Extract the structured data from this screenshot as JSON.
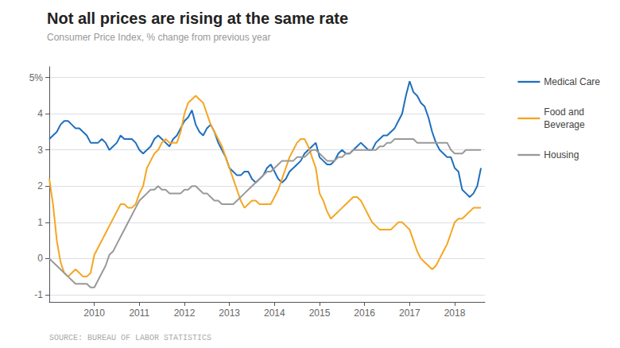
{
  "chart_data": {
    "type": "line",
    "title": "Not all prices are rising at the same rate",
    "subtitle": "Consumer Price Index, % change from previous year",
    "annotations": [
      "SOURCE: BUREAU OF LABOR STATISTICS"
    ],
    "x": [
      2009.0,
      2009.083,
      2009.167,
      2009.25,
      2009.333,
      2009.417,
      2009.5,
      2009.583,
      2009.667,
      2009.75,
      2009.833,
      2009.917,
      2010.0,
      2010.083,
      2010.167,
      2010.25,
      2010.333,
      2010.417,
      2010.5,
      2010.583,
      2010.667,
      2010.75,
      2010.833,
      2010.917,
      2011.0,
      2011.083,
      2011.167,
      2011.25,
      2011.333,
      2011.417,
      2011.5,
      2011.583,
      2011.667,
      2011.75,
      2011.833,
      2011.917,
      2012.0,
      2012.083,
      2012.167,
      2012.25,
      2012.333,
      2012.417,
      2012.5,
      2012.583,
      2012.667,
      2012.75,
      2012.833,
      2012.917,
      2013.0,
      2013.083,
      2013.167,
      2013.25,
      2013.333,
      2013.417,
      2013.5,
      2013.583,
      2013.667,
      2013.75,
      2013.833,
      2013.917,
      2014.0,
      2014.083,
      2014.167,
      2014.25,
      2014.333,
      2014.417,
      2014.5,
      2014.583,
      2014.667,
      2014.75,
      2014.833,
      2014.917,
      2015.0,
      2015.083,
      2015.167,
      2015.25,
      2015.333,
      2015.417,
      2015.5,
      2015.583,
      2015.667,
      2015.75,
      2015.833,
      2015.917,
      2016.0,
      2016.083,
      2016.167,
      2016.25,
      2016.333,
      2016.417,
      2016.5,
      2016.583,
      2016.667,
      2016.75,
      2016.833,
      2016.917,
      2017.0,
      2017.083,
      2017.167,
      2017.25,
      2017.333,
      2017.417,
      2017.5,
      2017.583,
      2017.667,
      2017.75,
      2017.833,
      2017.917,
      2018.0,
      2018.083,
      2018.167,
      2018.25,
      2018.333,
      2018.417,
      2018.5,
      2018.583
    ],
    "series": [
      {
        "name": "Medical Care",
        "color": "#1f6fbd",
        "values": [
          3.3,
          3.4,
          3.5,
          3.7,
          3.8,
          3.8,
          3.7,
          3.6,
          3.6,
          3.5,
          3.4,
          3.2,
          3.2,
          3.2,
          3.3,
          3.2,
          3.0,
          3.1,
          3.2,
          3.4,
          3.3,
          3.3,
          3.3,
          3.2,
          3.0,
          2.9,
          3.0,
          3.1,
          3.3,
          3.4,
          3.3,
          3.2,
          3.1,
          3.3,
          3.4,
          3.6,
          3.8,
          3.9,
          4.1,
          3.7,
          3.5,
          3.4,
          3.6,
          3.7,
          3.5,
          3.2,
          3.0,
          2.8,
          2.5,
          2.4,
          2.3,
          2.3,
          2.4,
          2.4,
          2.2,
          2.1,
          2.2,
          2.3,
          2.5,
          2.6,
          2.4,
          2.2,
          2.1,
          2.2,
          2.4,
          2.5,
          2.6,
          2.7,
          2.9,
          3.0,
          3.1,
          3.2,
          2.8,
          2.7,
          2.6,
          2.6,
          2.7,
          2.9,
          3.0,
          2.9,
          2.9,
          3.0,
          3.1,
          3.2,
          3.1,
          3.0,
          3.0,
          3.2,
          3.3,
          3.4,
          3.4,
          3.5,
          3.6,
          3.8,
          4.0,
          4.5,
          4.9,
          4.6,
          4.5,
          4.3,
          4.2,
          3.9,
          3.5,
          3.2,
          3.0,
          2.9,
          2.8,
          2.8,
          2.5,
          2.4,
          1.9,
          1.8,
          1.7,
          1.8,
          2.0,
          2.5
        ]
      },
      {
        "name": "Food and\nBeverage",
        "color": "#f5a623",
        "values": [
          2.2,
          1.5,
          0.5,
          -0.1,
          -0.4,
          -0.5,
          -0.4,
          -0.3,
          -0.4,
          -0.5,
          -0.5,
          -0.4,
          0.1,
          0.3,
          0.5,
          0.7,
          0.9,
          1.1,
          1.3,
          1.5,
          1.5,
          1.4,
          1.4,
          1.5,
          1.8,
          2.0,
          2.5,
          2.7,
          2.9,
          3.0,
          3.2,
          3.3,
          3.2,
          3.2,
          3.2,
          3.5,
          4.0,
          4.3,
          4.4,
          4.5,
          4.4,
          4.3,
          4.0,
          3.7,
          3.5,
          3.3,
          3.1,
          2.8,
          2.5,
          2.2,
          1.9,
          1.6,
          1.4,
          1.5,
          1.6,
          1.6,
          1.5,
          1.5,
          1.5,
          1.5,
          1.7,
          1.9,
          2.2,
          2.5,
          2.8,
          3.0,
          3.2,
          3.3,
          3.3,
          3.1,
          2.8,
          2.5,
          1.8,
          1.6,
          1.3,
          1.1,
          1.2,
          1.3,
          1.4,
          1.5,
          1.6,
          1.7,
          1.7,
          1.6,
          1.4,
          1.2,
          1.0,
          0.9,
          0.8,
          0.8,
          0.8,
          0.8,
          0.9,
          1.0,
          1.0,
          0.9,
          0.8,
          0.5,
          0.2,
          0.0,
          -0.1,
          -0.2,
          -0.3,
          -0.2,
          0.0,
          0.2,
          0.4,
          0.7,
          1.0,
          1.1,
          1.1,
          1.2,
          1.3,
          1.4,
          1.4,
          1.4
        ]
      },
      {
        "name": "Housing",
        "color": "#999999",
        "values": [
          0.0,
          -0.1,
          -0.2,
          -0.3,
          -0.4,
          -0.5,
          -0.6,
          -0.7,
          -0.7,
          -0.7,
          -0.7,
          -0.8,
          -0.8,
          -0.6,
          -0.4,
          -0.2,
          0.1,
          0.2,
          0.4,
          0.6,
          0.8,
          1.0,
          1.2,
          1.4,
          1.6,
          1.7,
          1.8,
          1.9,
          1.9,
          2.0,
          1.9,
          1.9,
          1.8,
          1.8,
          1.8,
          1.8,
          1.9,
          1.9,
          2.0,
          2.0,
          1.9,
          1.8,
          1.8,
          1.7,
          1.6,
          1.6,
          1.5,
          1.5,
          1.5,
          1.5,
          1.6,
          1.7,
          1.8,
          1.9,
          2.0,
          2.1,
          2.2,
          2.3,
          2.4,
          2.4,
          2.5,
          2.6,
          2.7,
          2.7,
          2.7,
          2.7,
          2.8,
          2.8,
          2.8,
          2.9,
          3.0,
          3.0,
          2.9,
          2.8,
          2.7,
          2.7,
          2.7,
          2.8,
          2.8,
          2.9,
          2.9,
          3.0,
          3.0,
          3.0,
          3.0,
          3.0,
          3.0,
          3.0,
          3.1,
          3.1,
          3.2,
          3.2,
          3.3,
          3.3,
          3.3,
          3.3,
          3.3,
          3.3,
          3.2,
          3.2,
          3.2,
          3.2,
          3.2,
          3.2,
          3.2,
          3.2,
          3.2,
          3.0,
          2.9,
          2.9,
          2.9,
          3.0,
          3.0,
          3.0,
          3.0,
          3.0
        ]
      }
    ],
    "xlim": [
      2009.0,
      2018.67
    ],
    "xticks": [
      2010,
      2011,
      2012,
      2013,
      2014,
      2015,
      2016,
      2017,
      2018
    ],
    "ylim": [
      -1.2,
      5.3
    ],
    "yticks": [
      -1,
      0,
      1,
      2,
      3,
      4,
      {
        "value": 5,
        "label": "5%"
      }
    ],
    "grid": "y",
    "legend": "right"
  }
}
